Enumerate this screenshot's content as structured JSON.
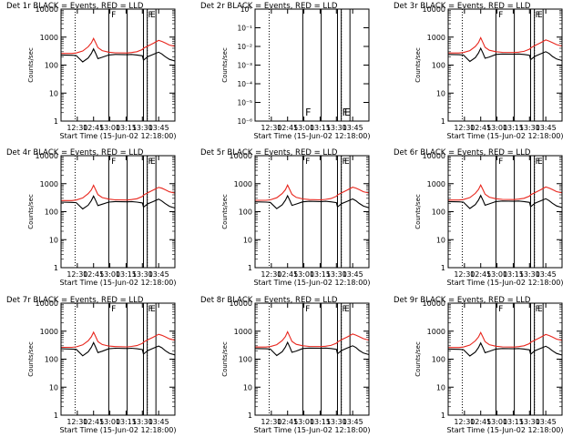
{
  "x_tick_labels": [
    "12:30",
    "12:45",
    "13:00",
    "13:15",
    "13:30",
    "13:45"
  ],
  "x_ticks_min": [
    15,
    30,
    45,
    60,
    75,
    90
  ],
  "x_range_min": [
    0,
    105
  ],
  "xlabel": "Start Time (15-Jun-02 12:18:00)",
  "ylabel": "Counts/sec",
  "y_tick_labels_normal": [
    "1",
    "10",
    "100",
    "1000",
    "10000"
  ],
  "y_tick_values_normal": [
    1,
    10,
    100,
    1000,
    10000
  ],
  "y_tick_labels_empty": [
    "10°",
    "10⁻¹",
    "10⁻²",
    "10⁻³",
    "10⁻⁴",
    "10⁻⁵",
    "10⁻⁶"
  ],
  "vertical_markers": {
    "dotted_min": [
      13,
      79.5
    ],
    "solid_min": [
      44,
      61,
      76,
      79.5,
      87.5
    ],
    "marker_letters": [
      {
        "t": 45.5,
        "letter": "F"
      },
      {
        "t": 79.5,
        "letter": "F"
      },
      {
        "t": 81.5,
        "letter": "E"
      }
    ]
  },
  "colors": {
    "events": "#000000",
    "lld": "#e8261d",
    "axes": "#000000"
  },
  "chart_data": [
    {
      "type": "line",
      "title": "Det 1r BLACK = Events, RED = LLD",
      "ylim": [
        1,
        10000
      ],
      "yscale": "log",
      "xlabel": "Start Time (15-Jun-02 12:18:00)",
      "ylabel": "Counts/sec",
      "series": [
        {
          "name": "Events",
          "x": [
            0,
            10,
            14,
            20,
            25,
            28,
            30,
            32,
            34,
            38,
            44,
            50,
            61,
            65,
            70,
            75,
            76,
            80,
            85,
            90,
            93,
            96,
            100,
            105
          ],
          "y": [
            230,
            225,
            220,
            130,
            180,
            260,
            380,
            260,
            170,
            190,
            230,
            240,
            235,
            240,
            230,
            215,
            150,
            200,
            240,
            290,
            250,
            200,
            160,
            140
          ]
        },
        {
          "name": "LLD",
          "x": [
            0,
            10,
            14,
            20,
            25,
            28,
            30,
            32,
            34,
            38,
            44,
            50,
            61,
            65,
            70,
            75,
            76,
            80,
            85,
            90,
            93,
            96,
            100,
            105
          ],
          "y": [
            260,
            260,
            270,
            320,
            450,
            620,
            900,
            620,
            420,
            330,
            290,
            275,
            270,
            280,
            300,
            360,
            400,
            480,
            600,
            760,
            700,
            620,
            520,
            470
          ]
        }
      ]
    },
    {
      "type": "line",
      "title": "Det 2r BLACK = Events, RED = LLD",
      "ylim": [
        1,
        1e-06
      ],
      "yscale": "log",
      "xlabel": "Start Time (15-Jun-02 12:18:00)",
      "ylabel": "Counts/sec",
      "series": []
    },
    {
      "type": "line",
      "title": "Det 3r BLACK = Events, RED = LLD",
      "ylim": [
        1,
        10000
      ],
      "yscale": "log",
      "xlabel": "Start Time (15-Jun-02 12:18:00)",
      "ylabel": "Counts/sec",
      "series": [
        {
          "name": "Events",
          "x": [
            0,
            10,
            14,
            20,
            25,
            28,
            30,
            32,
            34,
            38,
            44,
            50,
            61,
            65,
            70,
            75,
            76,
            80,
            85,
            90,
            93,
            96,
            100,
            105
          ],
          "y": [
            240,
            235,
            230,
            135,
            185,
            270,
            400,
            270,
            175,
            195,
            240,
            250,
            245,
            250,
            240,
            225,
            155,
            205,
            250,
            300,
            260,
            205,
            165,
            145
          ]
        },
        {
          "name": "LLD",
          "x": [
            0,
            10,
            14,
            20,
            25,
            28,
            30,
            32,
            34,
            38,
            44,
            50,
            61,
            65,
            70,
            75,
            76,
            80,
            85,
            90,
            93,
            96,
            100,
            105
          ],
          "y": [
            270,
            270,
            280,
            330,
            460,
            640,
            950,
            640,
            430,
            340,
            300,
            285,
            280,
            290,
            310,
            370,
            410,
            500,
            620,
            790,
            720,
            640,
            540,
            480
          ]
        }
      ]
    },
    {
      "type": "line",
      "title": "Det 4r BLACK = Events, RED = LLD",
      "ylim": [
        1,
        10000
      ],
      "yscale": "log",
      "xlabel": "Start Time (15-Jun-02 12:18:00)",
      "ylabel": "Counts/sec",
      "series": [
        {
          "name": "Events",
          "x": [
            0,
            10,
            14,
            20,
            25,
            28,
            30,
            32,
            34,
            38,
            44,
            50,
            61,
            65,
            70,
            75,
            76,
            80,
            85,
            90,
            93,
            96,
            100,
            105
          ],
          "y": [
            220,
            215,
            210,
            125,
            170,
            250,
            360,
            250,
            165,
            185,
            220,
            230,
            225,
            230,
            220,
            205,
            145,
            190,
            230,
            280,
            240,
            195,
            155,
            135
          ]
        },
        {
          "name": "LLD",
          "x": [
            0,
            10,
            14,
            20,
            25,
            28,
            30,
            32,
            34,
            38,
            44,
            50,
            61,
            65,
            70,
            75,
            76,
            80,
            85,
            90,
            93,
            96,
            100,
            105
          ],
          "y": [
            250,
            250,
            260,
            310,
            440,
            600,
            880,
            600,
            410,
            320,
            280,
            265,
            260,
            270,
            290,
            350,
            390,
            470,
            590,
            740,
            690,
            610,
            510,
            460
          ]
        }
      ]
    },
    {
      "type": "line",
      "title": "Det 5r BLACK = Events, RED = LLD",
      "ylim": [
        1,
        10000
      ],
      "yscale": "log",
      "xlabel": "Start Time (15-Jun-02 12:18:00)",
      "ylabel": "Counts/sec",
      "series": [
        {
          "name": "Events",
          "x": [
            0,
            10,
            14,
            20,
            25,
            28,
            30,
            32,
            34,
            38,
            44,
            50,
            61,
            65,
            70,
            75,
            76,
            80,
            85,
            90,
            93,
            96,
            100,
            105
          ],
          "y": [
            225,
            220,
            215,
            128,
            175,
            255,
            370,
            255,
            168,
            188,
            225,
            235,
            230,
            235,
            225,
            210,
            148,
            195,
            235,
            285,
            245,
            198,
            158,
            138
          ]
        },
        {
          "name": "LLD",
          "x": [
            0,
            10,
            14,
            20,
            25,
            28,
            30,
            32,
            34,
            38,
            44,
            50,
            61,
            65,
            70,
            75,
            76,
            80,
            85,
            90,
            93,
            96,
            100,
            105
          ],
          "y": [
            255,
            255,
            265,
            315,
            445,
            610,
            890,
            610,
            415,
            325,
            285,
            270,
            265,
            275,
            295,
            355,
            395,
            475,
            595,
            750,
            695,
            615,
            515,
            465
          ]
        }
      ]
    },
    {
      "type": "line",
      "title": "Det 6r BLACK = Events, RED = LLD",
      "ylim": [
        1,
        10000
      ],
      "yscale": "log",
      "xlabel": "Start Time (15-Jun-02 12:18:00)",
      "ylabel": "Counts/sec",
      "series": [
        {
          "name": "Events",
          "x": [
            0,
            10,
            14,
            20,
            25,
            28,
            30,
            32,
            34,
            38,
            44,
            50,
            61,
            65,
            70,
            75,
            76,
            80,
            85,
            90,
            93,
            96,
            100,
            105
          ],
          "y": [
            230,
            225,
            220,
            130,
            180,
            260,
            380,
            260,
            170,
            190,
            230,
            240,
            235,
            240,
            230,
            215,
            150,
            200,
            240,
            290,
            250,
            200,
            160,
            140
          ]
        },
        {
          "name": "LLD",
          "x": [
            0,
            10,
            14,
            20,
            25,
            28,
            30,
            32,
            34,
            38,
            44,
            50,
            61,
            65,
            70,
            75,
            76,
            80,
            85,
            90,
            93,
            96,
            100,
            105
          ],
          "y": [
            260,
            260,
            270,
            320,
            450,
            620,
            900,
            620,
            420,
            330,
            290,
            275,
            270,
            280,
            300,
            360,
            400,
            480,
            600,
            760,
            700,
            620,
            520,
            470
          ]
        }
      ]
    },
    {
      "type": "line",
      "title": "Det 7r BLACK = Events, RED = LLD",
      "ylim": [
        1,
        10000
      ],
      "yscale": "log",
      "xlabel": "Start Time (15-Jun-02 12:18:00)",
      "ylabel": "Counts/sec",
      "series": [
        {
          "name": "Events",
          "x": [
            0,
            10,
            14,
            20,
            25,
            28,
            30,
            32,
            34,
            38,
            44,
            50,
            61,
            65,
            70,
            75,
            76,
            80,
            85,
            90,
            93,
            96,
            100,
            105
          ],
          "y": [
            235,
            230,
            225,
            132,
            182,
            265,
            390,
            265,
            172,
            192,
            235,
            245,
            240,
            245,
            235,
            220,
            152,
            202,
            245,
            295,
            255,
            202,
            162,
            142
          ]
        },
        {
          "name": "LLD",
          "x": [
            0,
            10,
            14,
            20,
            25,
            28,
            30,
            32,
            34,
            38,
            44,
            50,
            61,
            65,
            70,
            75,
            76,
            80,
            85,
            90,
            93,
            96,
            100,
            105
          ],
          "y": [
            265,
            265,
            275,
            325,
            455,
            630,
            920,
            630,
            425,
            335,
            295,
            280,
            275,
            285,
            305,
            365,
            405,
            490,
            610,
            775,
            710,
            630,
            530,
            475
          ]
        }
      ]
    },
    {
      "type": "line",
      "title": "Det 8r BLACK = Events, RED = LLD",
      "ylim": [
        1,
        10000
      ],
      "yscale": "log",
      "xlabel": "Start Time (15-Jun-02 12:18:00)",
      "ylabel": "Counts/sec",
      "series": [
        {
          "name": "Events",
          "x": [
            0,
            10,
            14,
            20,
            25,
            28,
            30,
            32,
            34,
            38,
            44,
            50,
            61,
            65,
            70,
            75,
            76,
            80,
            85,
            90,
            93,
            96,
            100,
            105
          ],
          "y": [
            240,
            235,
            230,
            135,
            185,
            270,
            400,
            270,
            175,
            195,
            240,
            250,
            245,
            250,
            240,
            225,
            155,
            205,
            250,
            300,
            260,
            205,
            165,
            145
          ]
        },
        {
          "name": "LLD",
          "x": [
            0,
            10,
            14,
            20,
            25,
            28,
            30,
            32,
            34,
            38,
            44,
            50,
            61,
            65,
            70,
            75,
            76,
            80,
            85,
            90,
            93,
            96,
            100,
            105
          ],
          "y": [
            270,
            270,
            280,
            330,
            460,
            640,
            950,
            640,
            430,
            340,
            300,
            285,
            280,
            290,
            310,
            370,
            410,
            500,
            620,
            790,
            720,
            640,
            540,
            480
          ]
        }
      ]
    },
    {
      "type": "line",
      "title": "Det 9r BLACK = Events, RED = LLD",
      "ylim": [
        1,
        10000
      ],
      "yscale": "log",
      "xlabel": "Start Time (15-Jun-02 12:18:00)",
      "ylabel": "Counts/sec",
      "series": [
        {
          "name": "Events",
          "x": [
            0,
            10,
            14,
            20,
            25,
            28,
            30,
            32,
            34,
            38,
            44,
            50,
            61,
            65,
            70,
            75,
            76,
            80,
            85,
            90,
            93,
            96,
            100,
            105
          ],
          "y": [
            230,
            225,
            220,
            130,
            180,
            260,
            380,
            260,
            170,
            190,
            230,
            240,
            235,
            240,
            230,
            215,
            150,
            200,
            240,
            290,
            250,
            200,
            160,
            140
          ]
        },
        {
          "name": "LLD",
          "x": [
            0,
            10,
            14,
            20,
            25,
            28,
            30,
            32,
            34,
            38,
            44,
            50,
            61,
            65,
            70,
            75,
            76,
            80,
            85,
            90,
            93,
            96,
            100,
            105
          ],
          "y": [
            260,
            260,
            270,
            320,
            450,
            620,
            900,
            620,
            420,
            330,
            290,
            275,
            270,
            280,
            300,
            360,
            400,
            480,
            600,
            760,
            700,
            620,
            520,
            470
          ]
        }
      ]
    }
  ]
}
